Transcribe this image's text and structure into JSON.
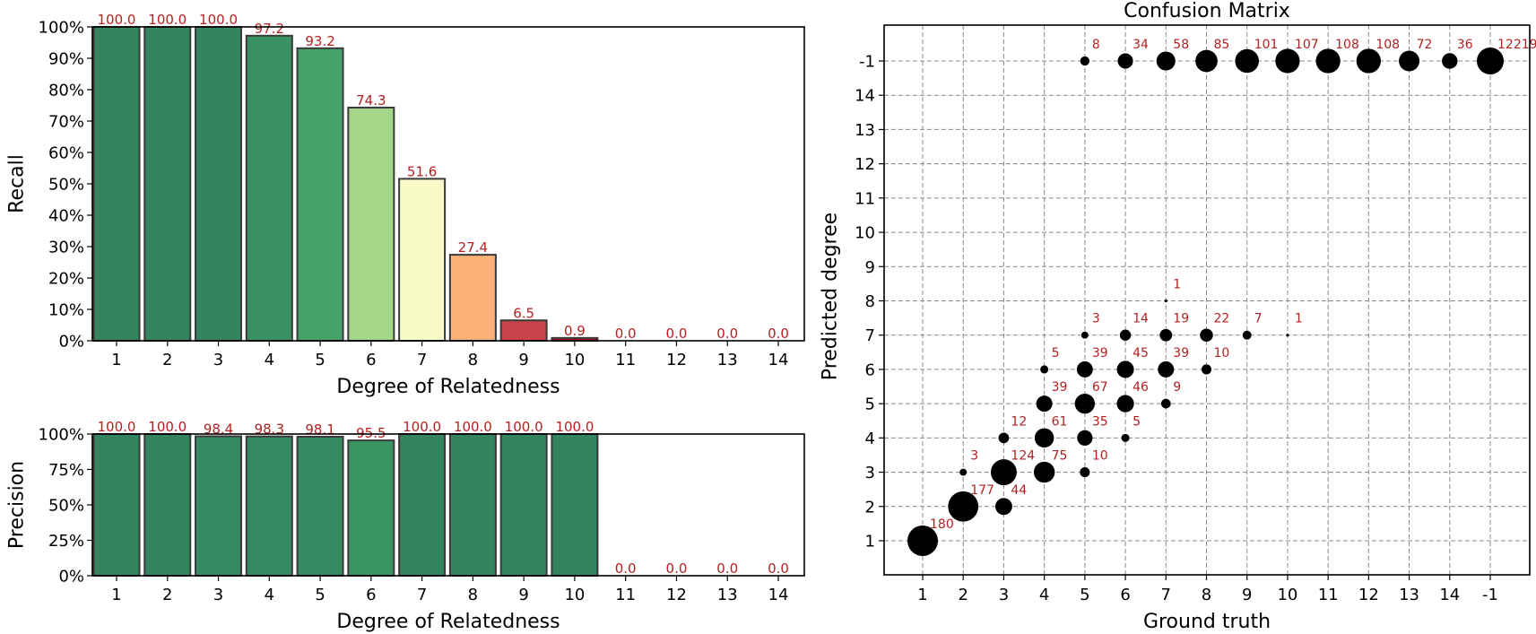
{
  "chart_data": [
    {
      "type": "bar",
      "id": "recall",
      "title": "",
      "xlabel": "Degree of Relatedness",
      "ylabel": "Recall",
      "categories": [
        "1",
        "2",
        "3",
        "4",
        "5",
        "6",
        "7",
        "8",
        "9",
        "10",
        "11",
        "12",
        "13",
        "14"
      ],
      "values": [
        100.0,
        100.0,
        100.0,
        97.2,
        93.2,
        74.3,
        51.6,
        27.4,
        6.5,
        0.9,
        0.0,
        0.0,
        0.0,
        0.0
      ],
      "value_labels": [
        "100.0",
        "100.0",
        "100.0",
        "97.2",
        "93.2",
        "74.3",
        "51.6",
        "27.4",
        "6.5",
        "0.9",
        "0.0",
        "0.0",
        "0.0",
        "0.0"
      ],
      "ylim": [
        0,
        100
      ],
      "yticks": [
        "0%",
        "10%",
        "20%",
        "30%",
        "40%",
        "50%",
        "60%",
        "70%",
        "80%",
        "90%",
        "100%"
      ],
      "ytick_values": [
        0,
        10,
        20,
        30,
        40,
        50,
        60,
        70,
        80,
        90,
        100
      ],
      "colors": [
        "#33845f",
        "#33845f",
        "#33845f",
        "#3a9162",
        "#43a36a",
        "#a3d686",
        "#f8fbc6",
        "#fbb177",
        "#c9444a",
        "#a50026",
        "#a50026",
        "#a50026",
        "#a50026",
        "#a50026"
      ],
      "grid": false
    },
    {
      "type": "bar",
      "id": "precision",
      "title": "",
      "xlabel": "Degree of Relatedness",
      "ylabel": "Precision",
      "categories": [
        "1",
        "2",
        "3",
        "4",
        "5",
        "6",
        "7",
        "8",
        "9",
        "10",
        "11",
        "12",
        "13",
        "14"
      ],
      "values": [
        100.0,
        100.0,
        98.4,
        98.3,
        98.1,
        95.5,
        100.0,
        100.0,
        100.0,
        100.0,
        0.0,
        0.0,
        0.0,
        0.0
      ],
      "value_labels": [
        "100.0",
        "100.0",
        "98.4",
        "98.3",
        "98.1",
        "95.5",
        "100.0",
        "100.0",
        "100.0",
        "100.0",
        "0.0",
        "0.0",
        "0.0",
        "0.0"
      ],
      "ylim": [
        0,
        100
      ],
      "yticks": [
        "0%",
        "25%",
        "50%",
        "75%",
        "100%"
      ],
      "ytick_values": [
        0,
        25,
        50,
        75,
        100
      ],
      "colors": [
        "#33845f",
        "#33845f",
        "#368a61",
        "#368a61",
        "#368a61",
        "#3b9563",
        "#33845f",
        "#33845f",
        "#33845f",
        "#33845f",
        "#a50026",
        "#a50026",
        "#a50026",
        "#a50026"
      ],
      "grid": false
    },
    {
      "type": "scatter",
      "id": "confusion",
      "title": "Confusion Matrix",
      "xlabel": "Ground truth",
      "ylabel": "Predicted degree",
      "xticks": [
        "1",
        "2",
        "3",
        "4",
        "5",
        "6",
        "7",
        "8",
        "9",
        "10",
        "11",
        "12",
        "13",
        "14",
        "-1"
      ],
      "yticks": [
        "1",
        "2",
        "3",
        "4",
        "5",
        "6",
        "7",
        "8",
        "9",
        "10",
        "11",
        "12",
        "13",
        "14",
        "-1"
      ],
      "grid": true,
      "points": [
        {
          "gt": "1",
          "pred": "1",
          "count": 180,
          "label": "180"
        },
        {
          "gt": "2",
          "pred": "2",
          "count": 177,
          "label": "177"
        },
        {
          "gt": "2",
          "pred": "3",
          "count": 3,
          "label": "3"
        },
        {
          "gt": "3",
          "pred": "2",
          "count": 44,
          "label": "44"
        },
        {
          "gt": "3",
          "pred": "3",
          "count": 124,
          "label": "124"
        },
        {
          "gt": "3",
          "pred": "4",
          "count": 12,
          "label": "12"
        },
        {
          "gt": "4",
          "pred": "3",
          "count": 75,
          "label": "75"
        },
        {
          "gt": "4",
          "pred": "4",
          "count": 61,
          "label": "61"
        },
        {
          "gt": "4",
          "pred": "5",
          "count": 39,
          "label": "39"
        },
        {
          "gt": "4",
          "pred": "6",
          "count": 5,
          "label": "5"
        },
        {
          "gt": "5",
          "pred": "3",
          "count": 10,
          "label": "10"
        },
        {
          "gt": "5",
          "pred": "4",
          "count": 35,
          "label": "35"
        },
        {
          "gt": "5",
          "pred": "5",
          "count": 67,
          "label": "67"
        },
        {
          "gt": "5",
          "pred": "6",
          "count": 39,
          "label": "39"
        },
        {
          "gt": "5",
          "pred": "7",
          "count": 3,
          "label": "3"
        },
        {
          "gt": "6",
          "pred": "4",
          "count": 5,
          "label": "5"
        },
        {
          "gt": "6",
          "pred": "5",
          "count": 46,
          "label": "46"
        },
        {
          "gt": "6",
          "pred": "6",
          "count": 45,
          "label": "45"
        },
        {
          "gt": "6",
          "pred": "7",
          "count": 14,
          "label": "14"
        },
        {
          "gt": "7",
          "pred": "5",
          "count": 9,
          "label": "9"
        },
        {
          "gt": "7",
          "pred": "6",
          "count": 39,
          "label": "39"
        },
        {
          "gt": "7",
          "pred": "7",
          "count": 19,
          "label": "19"
        },
        {
          "gt": "7",
          "pred": "8",
          "count": 1,
          "label": "1"
        },
        {
          "gt": "8",
          "pred": "6",
          "count": 10,
          "label": "10"
        },
        {
          "gt": "8",
          "pred": "7",
          "count": 22,
          "label": "22"
        },
        {
          "gt": "9",
          "pred": "7",
          "count": 7,
          "label": "7"
        },
        {
          "gt": "10",
          "pred": "7",
          "count": 1,
          "label": "1"
        },
        {
          "gt": "5",
          "pred": "-1",
          "count": 8,
          "label": "8"
        },
        {
          "gt": "6",
          "pred": "-1",
          "count": 34,
          "label": "34"
        },
        {
          "gt": "7",
          "pred": "-1",
          "count": 58,
          "label": "58"
        },
        {
          "gt": "8",
          "pred": "-1",
          "count": 85,
          "label": "85"
        },
        {
          "gt": "9",
          "pred": "-1",
          "count": 101,
          "label": "101"
        },
        {
          "gt": "10",
          "pred": "-1",
          "count": 107,
          "label": "107"
        },
        {
          "gt": "11",
          "pred": "-1",
          "count": 108,
          "label": "108"
        },
        {
          "gt": "12",
          "pred": "-1",
          "count": 108,
          "label": "108"
        },
        {
          "gt": "13",
          "pred": "-1",
          "count": 72,
          "label": "72"
        },
        {
          "gt": "14",
          "pred": "-1",
          "count": 36,
          "label": "36"
        },
        {
          "gt": "-1",
          "pred": "-1",
          "count": 12219,
          "label": "12219"
        }
      ]
    }
  ],
  "colors": {
    "label_red": "#b22222",
    "bubble": "#000000"
  }
}
